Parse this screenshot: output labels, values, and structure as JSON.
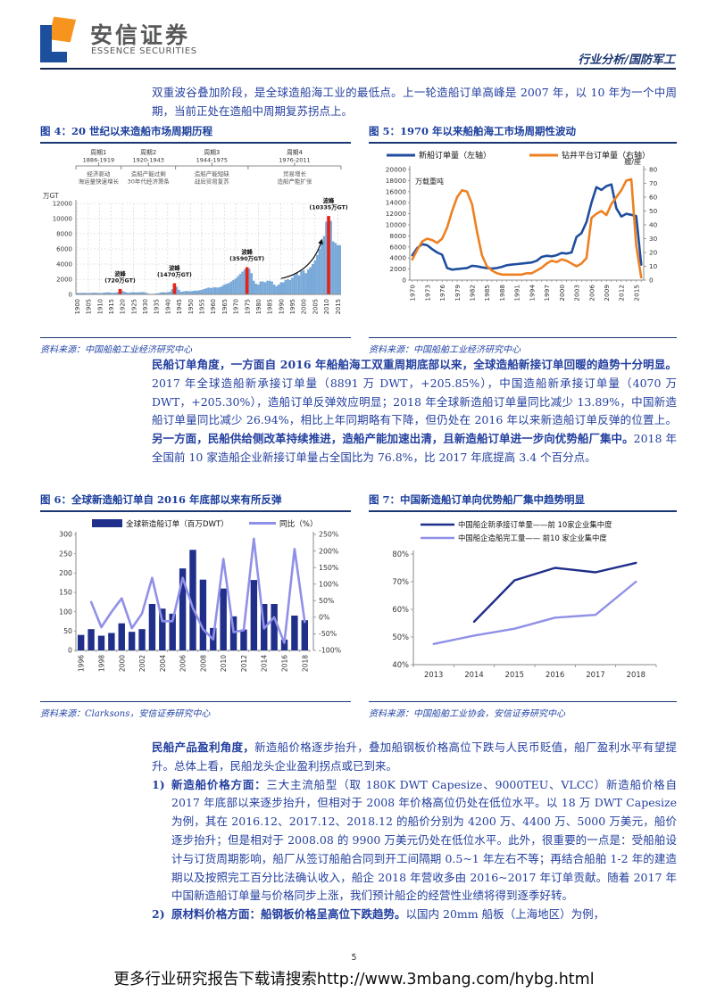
{
  "header": {
    "logo_cn": "安信证券",
    "logo_en": "ESSENCE SECURITIES",
    "right": "行业分析/国防军工"
  },
  "paragraphs": {
    "p1": [
      {
        "b": false,
        "t": "双重波谷叠加阶段，是全球造船海工业的最低点。上一轮造船订单高峰是 2007 年，以 10 年为一个中周期，当前正处在造船中周期复苏拐点上。"
      }
    ],
    "p2": [
      {
        "b": true,
        "t": "民船订单角度，一方面自 2016 年船舶海工双重周期底部以来，全球造船新接订单回暖的趋势十分明显。"
      },
      {
        "b": false,
        "t": "2017 年全球造船新承接订单量（8891 万 DWT，+205.85%），中国造船新承接订单量（4070 万 DWT，+205.30%），造船订单反弹效应明显；2018 年全球新造船订单量同比减少 13.89%，中国新造船订单量同比减少 26.94%，相比上年同期略有下降，但仍处在 2016 年以来新造船订单反弹的位置上。"
      },
      {
        "b": true,
        "t": "另一方面，民船供给侧改革持续推进，造船产能加速出清，且新造船订单进一步向优势船厂集中。"
      },
      {
        "b": false,
        "t": "2018 年全国前 10 家造船企业新接订单量占全国比为 76.8%，比 2017 年底提高 3.4 个百分点。"
      }
    ],
    "p3": [
      {
        "b": true,
        "t": "民船产品盈利角度，"
      },
      {
        "b": false,
        "t": "新造船价格逐步抬升，叠加船钢板价格高位下跌与人民币贬值，船厂盈利水平有望提升。总体上看，民船龙头企业盈利拐点或已到来。"
      }
    ],
    "li1_marker": "1)",
    "li1": [
      {
        "b": true,
        "t": "新造船价格方面："
      },
      {
        "b": false,
        "t": "三大主流船型（取 180K DWT Capesize、9000TEU、VLCC）新造船价格自 2017 年底部以来逐步抬升，但相对于 2008 年价格高位仍处在低位水平。以 18 万 DWT Capesize 为例，其在 2016.12、2017.12、2018.12 的船价分别为 4200 万、4400 万、5000 万美元，船价逐步抬升；但是相对于 2008.08 的 9900 万美元仍处在低位水平。此外，很重要的一点是：受船舶设计与订货周期影响，船厂从签订船舶合同到开工间隔期 0.5~1 年左右不等；再结合船舶 1-2 年的建造期以及按照完工百分比法确认收入，船企 2018 年营收多由 2016~2017 年订单贡献。随着 2017 年中国新造船订单量与价格同步上涨，我们预计船企的经营性业绩将得到逐季好转。"
      }
    ],
    "li2_marker": "2)",
    "li2": [
      {
        "b": true,
        "t": "原材料价格方面：船钢板价格呈高位下跌趋势。"
      },
      {
        "b": false,
        "t": "以国内 20mm 船板（上海地区）为例，"
      }
    ]
  },
  "figures": {
    "fig4": {
      "title": "图 4：20 世纪以来造船市场周期历程",
      "source": "资料来源：中国船舶工业经济研究中心",
      "chart_data": {
        "type": "bar",
        "unit_label": "万GT",
        "ylim": [
          0,
          12000
        ],
        "yticks": [
          0,
          2000,
          4000,
          6000,
          8000,
          10000,
          12000
        ],
        "start_year": 1900,
        "xtick_step": 5,
        "bar_color": "#79A9D9",
        "peak_color": "#E42217",
        "values": [
          200,
          190,
          200,
          210,
          200,
          190,
          200,
          220,
          230,
          200,
          180,
          190,
          230,
          260,
          280,
          240,
          200,
          250,
          300,
          720,
          450,
          350,
          250,
          220,
          280,
          300,
          250,
          280,
          300,
          320,
          280,
          160,
          80,
          70,
          90,
          130,
          180,
          250,
          300,
          250,
          300,
          350,
          700,
          1470,
          1000,
          600,
          350,
          400,
          450,
          450,
          400,
          450,
          500,
          500,
          550,
          600,
          700,
          800,
          900,
          850,
          900,
          950,
          900,
          950,
          1100,
          1300,
          1400,
          1500,
          1700,
          1900,
          2100,
          2400,
          2700,
          3000,
          3300,
          3590,
          3400,
          2800,
          1800,
          1400,
          1300,
          1700,
          1700,
          1600,
          1800,
          1800,
          1700,
          1300,
          1100,
          1300,
          1600,
          1600,
          1900,
          2000,
          1900,
          2200,
          2600,
          2800,
          2500,
          3100,
          3200,
          2800,
          3300,
          3600,
          4000,
          4500,
          5200,
          6000,
          6700,
          7700,
          9600,
          10335,
          9700,
          7000,
          6800,
          6500,
          6500
        ],
        "peaks": [
          {
            "year": 1919,
            "name": "波峰",
            "value": "(720万GT)"
          },
          {
            "year": 1943,
            "name": "波峰",
            "value": "(1470万GT)"
          },
          {
            "year": 1975,
            "name": "波峰",
            "value": "(3590万GT)"
          },
          {
            "year": 2011,
            "name": "波峰",
            "value": "(10335万GT)"
          }
        ],
        "periods": [
          {
            "name": "周期1",
            "range": "1886-1919",
            "desc1": "经济驱动",
            "desc2": "海运量快速增长",
            "end_year": 1919
          },
          {
            "name": "周期2",
            "range": "1920-1943",
            "desc1": "造船产能过剩",
            "desc2": "30年代经济萧条",
            "end_year": 1943
          },
          {
            "name": "周期3",
            "range": "1944-1975",
            "desc1": "造船产能短缺",
            "desc2": "战后贸易复苏",
            "end_year": 1975
          },
          {
            "name": "周期4",
            "range": "1976-2011",
            "desc1": "贸易增长",
            "desc2": "造船产能扩张",
            "end_year": 2016
          }
        ]
      }
    },
    "fig5": {
      "title": "图 5：1970 年以来船舶海工市场周期性波动",
      "source": "资料来源：中国船舶工业经济研究中心",
      "chart_data": {
        "type": "line",
        "legend": [
          "新船订单量（左轴）",
          "钻井平台订单量（右轴）"
        ],
        "colors": [
          "#1F4E9E",
          "#EE8022"
        ],
        "left_axis_label": "万载重吨",
        "right_axis_label": "艘/座",
        "left_ylim": [
          0,
          20000
        ],
        "left_step": 2000,
        "right_ylim": [
          0,
          80
        ],
        "right_step": 10,
        "start_year": 1970,
        "xtick_step": 3,
        "series": [
          {
            "name": "新船订单量",
            "axis": "left",
            "values": [
              4500,
              5800,
              6500,
              6300,
              5600,
              5000,
              4600,
              2200,
              1900,
              2000,
              2100,
              2200,
              2600,
              2500,
              2300,
              2200,
              2100,
              2200,
              2400,
              2700,
              2800,
              2900,
              3000,
              3100,
              3200,
              3500,
              4200,
              4400,
              4300,
              4500,
              4900,
              4800,
              5000,
              7800,
              8500,
              10500,
              14000,
              16800,
              16300,
              17000,
              17300,
              13000,
              11500,
              12000,
              11800,
              11600,
              2800
            ]
          },
          {
            "name": "钻井平台订单量",
            "axis": "right",
            "values": [
              15,
              22,
              28,
              30,
              29,
              27,
              30,
              38,
              50,
              60,
              65,
              64,
              55,
              35,
              18,
              10,
              7,
              5,
              4,
              4,
              4,
              4,
              4,
              5,
              5,
              7,
              9,
              12,
              14,
              13,
              15,
              14,
              12,
              10,
              12,
              16,
              45,
              48,
              50,
              47,
              55,
              60,
              65,
              72,
              73,
              25,
              2
            ]
          }
        ]
      }
    },
    "fig6": {
      "title": "图 6：全球新造船订单自 2016 年底部以来有所反弹",
      "source": "资料来源：Clarksons，安信证券研究中心",
      "chart_data": {
        "type": "bar+line",
        "legend": [
          "全球新造船订单（百万DWT）",
          "同比（%）"
        ],
        "bar_color": "#1F2F8A",
        "line_color": "#9090E8",
        "categories": [
          1996,
          1997,
          1998,
          1999,
          2000,
          2001,
          2002,
          2003,
          2004,
          2005,
          2006,
          2007,
          2008,
          2009,
          2010,
          2011,
          2012,
          2013,
          2014,
          2015,
          2016,
          2017,
          2018
        ],
        "bars": [
          40,
          55,
          38,
          45,
          70,
          48,
          55,
          120,
          108,
          95,
          212,
          260,
          183,
          58,
          160,
          88,
          54,
          182,
          120,
          120,
          28,
          90,
          78
        ],
        "line_pct": [
          null,
          46,
          -30,
          16,
          57,
          -33,
          11,
          119,
          -12,
          -12,
          119,
          28,
          -36,
          -67,
          176,
          -45,
          -39,
          237,
          -34,
          0,
          -77,
          206,
          -14
        ],
        "left_ylim": [
          0,
          300
        ],
        "left_step": 50,
        "right_ylim": [
          -100,
          250
        ],
        "right_step": 50
      }
    },
    "fig7": {
      "title": "图 7：中国新造船订单向优势船厂集中趋势明显",
      "source": "资料来源：中国船舶工业协会，安信证券研究中心",
      "chart_data": {
        "type": "line",
        "legend": [
          "中国船企新承接订单量——前 10家企业集中度",
          "中国船企造船完工量—— 前10 家企业集中度"
        ],
        "colors": [
          "#1F2F8A",
          "#9090E8"
        ],
        "categories": [
          2013,
          2014,
          2015,
          2016,
          2017,
          2018
        ],
        "ylim": [
          40,
          80
        ],
        "step": 10,
        "series": [
          {
            "name": "新承接订单量前10家集中度",
            "values": [
              null,
              55.5,
              70.5,
              75,
              73.4,
              76.8
            ]
          },
          {
            "name": "造船完工量前10家集中度",
            "values": [
              47.5,
              50.5,
              53,
              57,
              58,
              70
            ]
          }
        ]
      }
    }
  },
  "footer": {
    "page_number": "5",
    "promo": "更多行业研究报告下载请搜索http://www.3mbang.com/hybg.html"
  }
}
